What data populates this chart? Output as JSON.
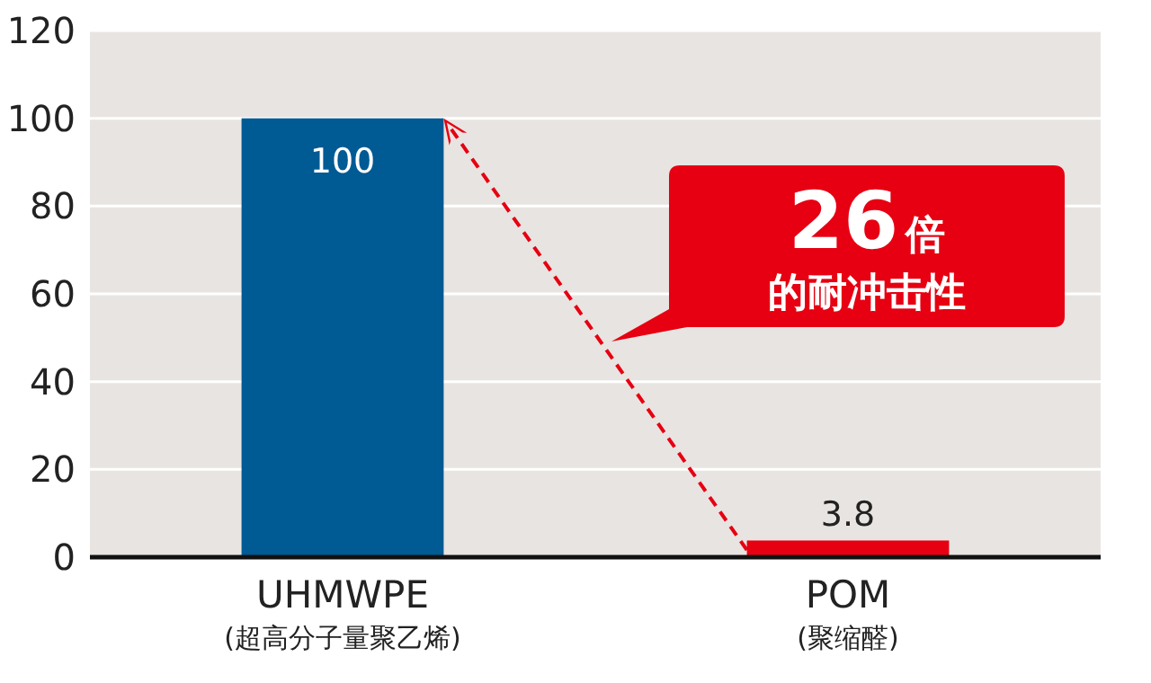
{
  "chart_data": {
    "type": "bar",
    "categories": [
      "UHMWPE\n(超高分子量聚乙烯)",
      "POM\n(聚缩醛)"
    ],
    "values": [
      100,
      3.8
    ],
    "colors": [
      "#005a94",
      "#e60012"
    ],
    "ylim": [
      0,
      120
    ],
    "yticks": [
      0,
      20,
      40,
      60,
      80,
      100,
      120
    ],
    "grid": "y",
    "data_labels": true,
    "annotations": [
      "26倍",
      "的耐冲击性"
    ]
  }
}
